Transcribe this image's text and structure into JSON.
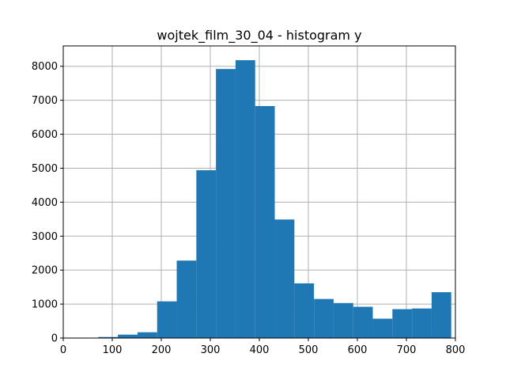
{
  "chart_data": {
    "type": "bar",
    "title": "wojtek_film_30_04 - histogram y",
    "xlabel": "",
    "ylabel": "",
    "xlim": [
      0,
      800
    ],
    "ylim": [
      0,
      8600
    ],
    "grid": true,
    "bar_color": "#1f77b4",
    "x_ticks": [
      0,
      100,
      200,
      300,
      400,
      500,
      600,
      700,
      800
    ],
    "y_ticks": [
      0,
      1000,
      2000,
      3000,
      4000,
      5000,
      6000,
      7000,
      8000
    ],
    "bins": [
      {
        "x0": 71.5,
        "x1": 111.5,
        "count": 30
      },
      {
        "x0": 111.5,
        "x1": 151.5,
        "count": 100
      },
      {
        "x0": 151.5,
        "x1": 191.5,
        "count": 170
      },
      {
        "x0": 191.5,
        "x1": 231.5,
        "count": 1080
      },
      {
        "x0": 231.5,
        "x1": 271.5,
        "count": 2280
      },
      {
        "x0": 271.5,
        "x1": 311.5,
        "count": 4940
      },
      {
        "x0": 311.5,
        "x1": 351.5,
        "count": 7920
      },
      {
        "x0": 351.5,
        "x1": 391.5,
        "count": 8180
      },
      {
        "x0": 391.5,
        "x1": 431.5,
        "count": 6830
      },
      {
        "x0": 431.5,
        "x1": 471.5,
        "count": 3490
      },
      {
        "x0": 471.5,
        "x1": 511.5,
        "count": 1610
      },
      {
        "x0": 511.5,
        "x1": 551.5,
        "count": 1150
      },
      {
        "x0": 551.5,
        "x1": 591.5,
        "count": 1030
      },
      {
        "x0": 591.5,
        "x1": 631.5,
        "count": 920
      },
      {
        "x0": 631.5,
        "x1": 671.5,
        "count": 570
      },
      {
        "x0": 671.5,
        "x1": 711.5,
        "count": 850
      },
      {
        "x0": 711.5,
        "x1": 751.5,
        "count": 870
      },
      {
        "x0": 751.5,
        "x1": 791.5,
        "count": 1350
      }
    ]
  }
}
